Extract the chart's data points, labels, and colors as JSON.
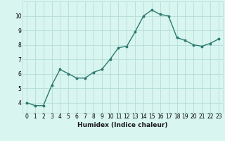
{
  "x": [
    0,
    1,
    2,
    3,
    4,
    5,
    6,
    7,
    8,
    9,
    10,
    11,
    12,
    13,
    14,
    15,
    16,
    17,
    18,
    19,
    20,
    21,
    22,
    23
  ],
  "y": [
    4.0,
    3.8,
    3.8,
    5.2,
    6.3,
    6.0,
    5.7,
    5.7,
    6.1,
    6.3,
    7.0,
    7.8,
    7.9,
    8.9,
    10.0,
    10.4,
    10.1,
    10.0,
    8.5,
    8.3,
    8.0,
    7.9,
    8.1,
    8.4
  ],
  "line_color": "#2d7a6e",
  "marker": "o",
  "marker_size": 1.8,
  "line_width": 1.0,
  "bg_color": "#d8f5f0",
  "grid_color": "#b5ddd8",
  "xlabel": "Humidex (Indice chaleur)",
  "ylabel": "",
  "xlim": [
    -0.5,
    23.5
  ],
  "ylim": [
    3.3,
    11.0
  ],
  "yticks": [
    4,
    5,
    6,
    7,
    8,
    9,
    10
  ],
  "xticks": [
    0,
    1,
    2,
    3,
    4,
    5,
    6,
    7,
    8,
    9,
    10,
    11,
    12,
    13,
    14,
    15,
    16,
    17,
    18,
    19,
    20,
    21,
    22,
    23
  ],
  "xlabel_fontsize": 6.5,
  "tick_fontsize": 5.5
}
